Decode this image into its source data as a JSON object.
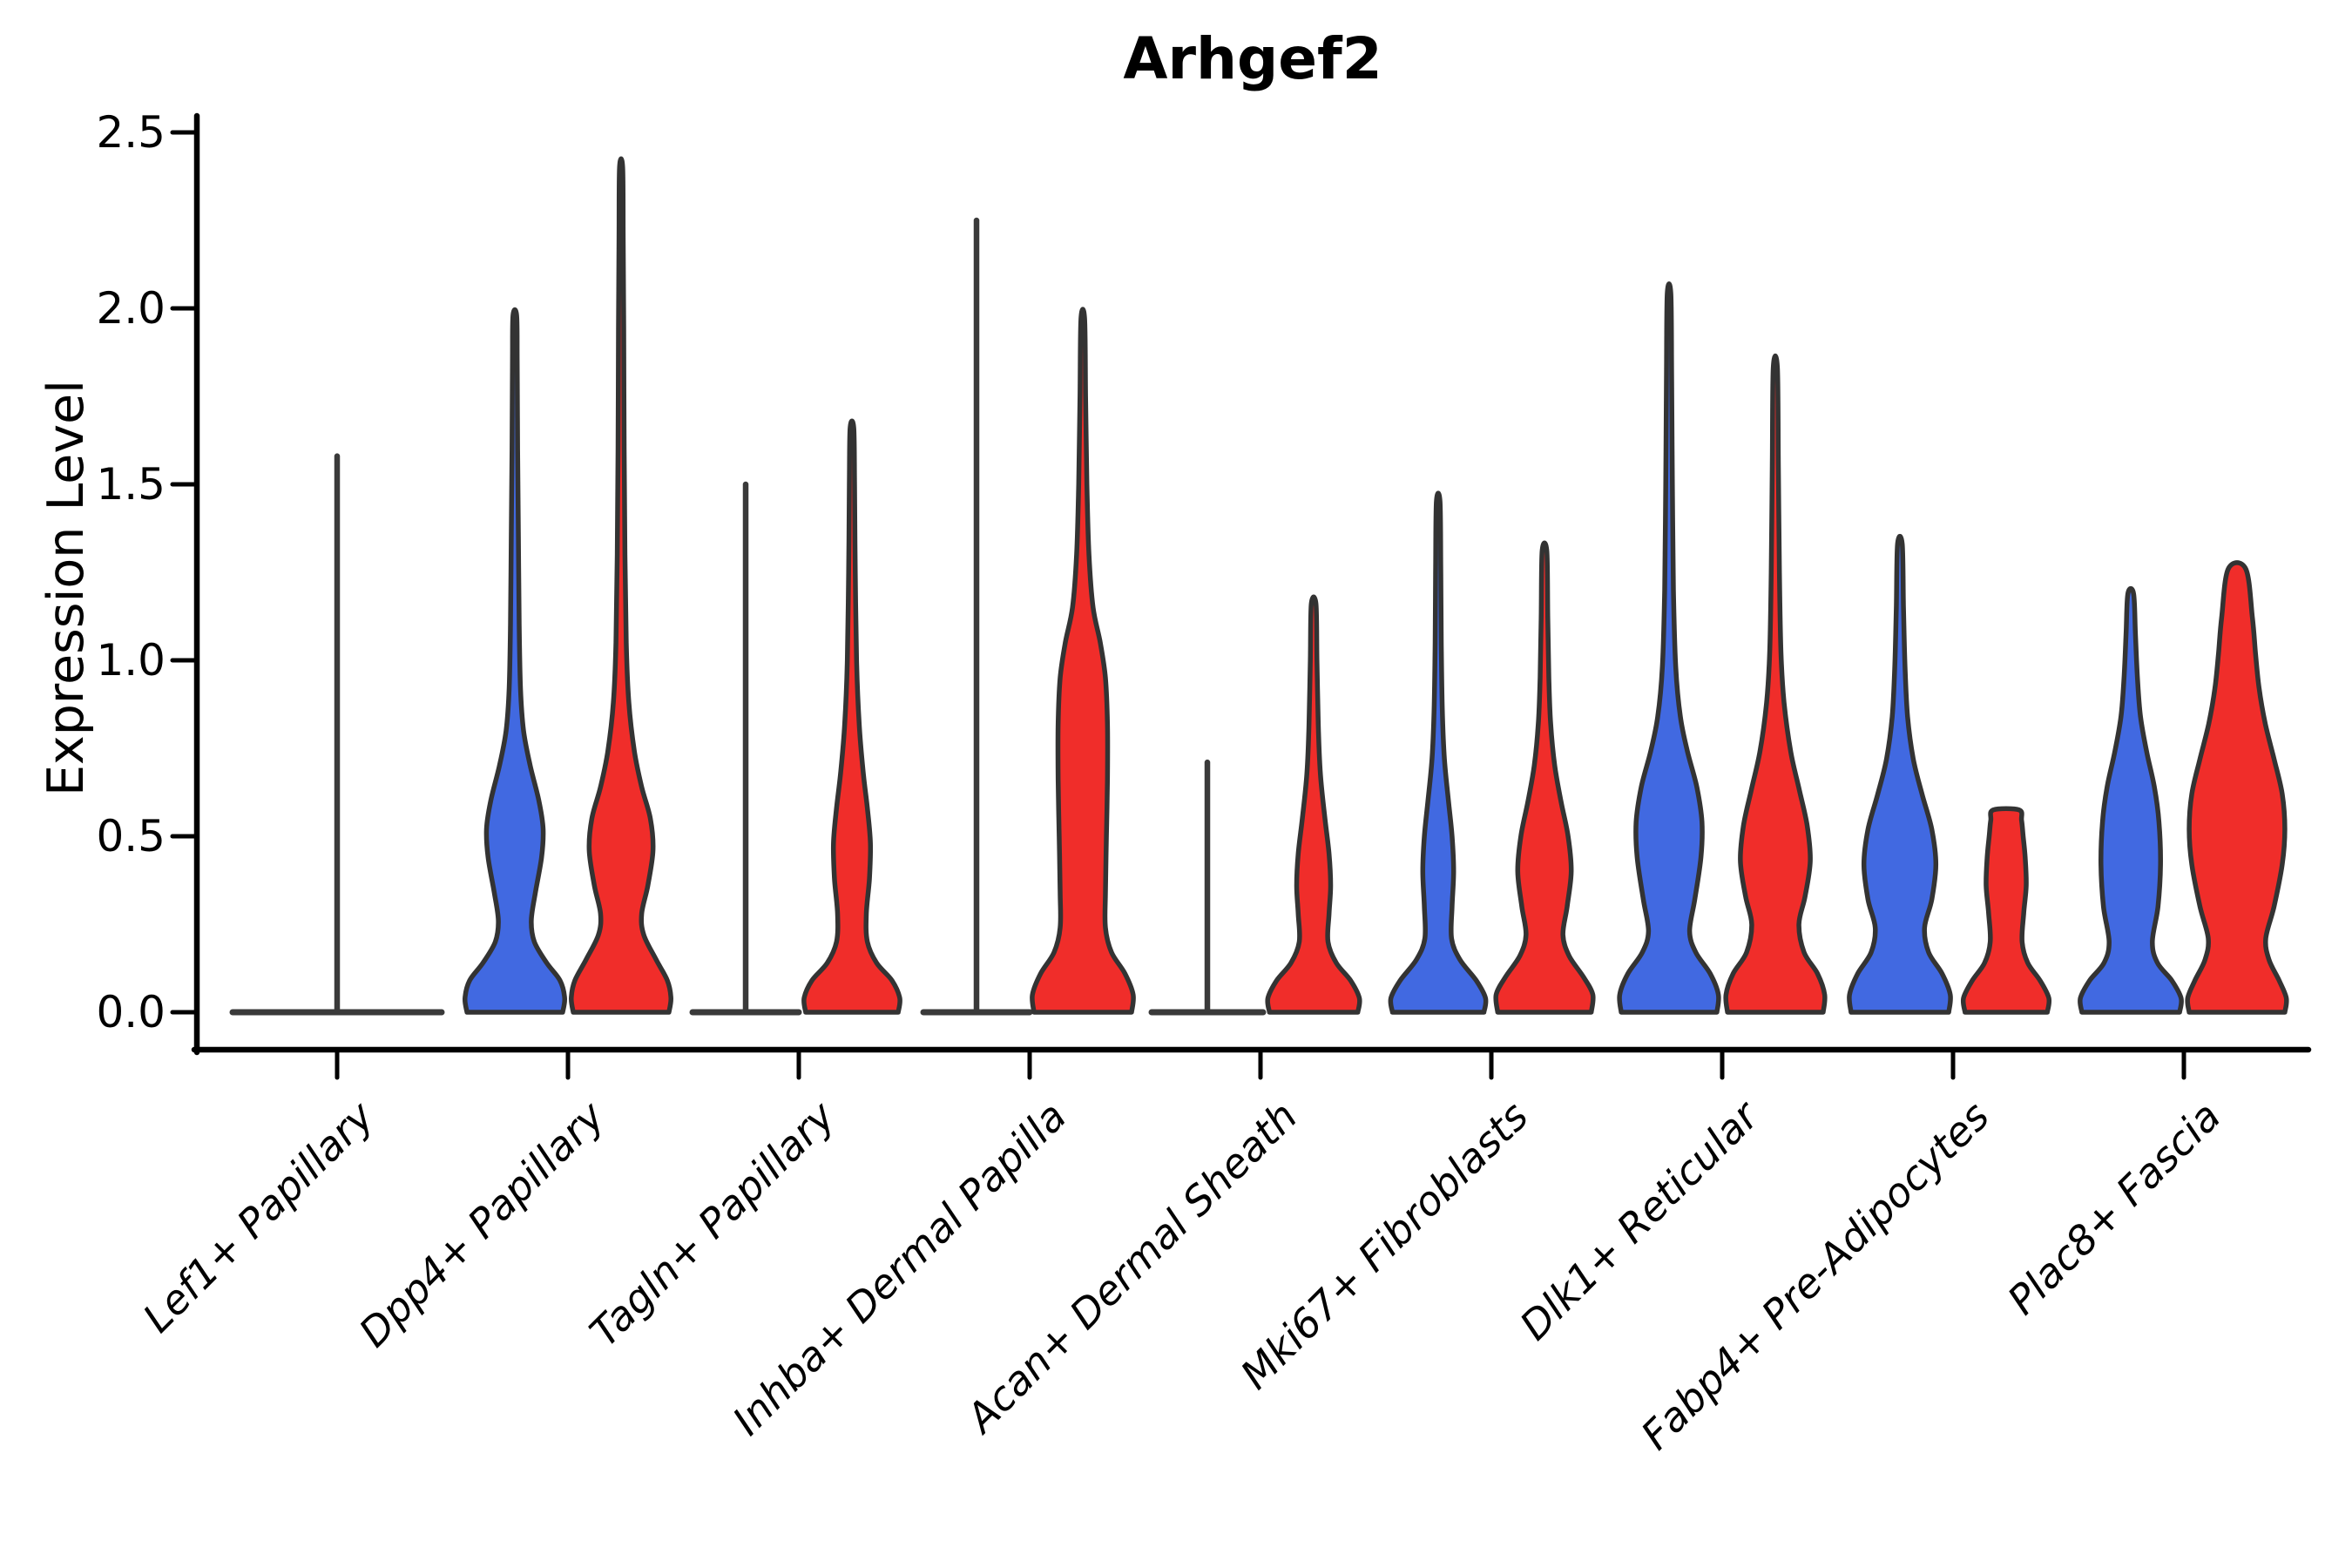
{
  "title": "Arhgef2",
  "ylabel": "Expression Level",
  "colors": {
    "blue_fill": "#4169E1",
    "red_fill": "#F02D2A",
    "violin_outline": "#333333",
    "collapsed_line": "#3a3a3a",
    "axis": "#000000",
    "background": "#ffffff"
  },
  "chart_data": {
    "type": "violin",
    "title": "Arhgef2",
    "xlabel": "",
    "ylabel": "Expression Level",
    "ylim": [
      0,
      2.5
    ],
    "yticks": [
      {
        "value": 0.0,
        "label": "0.0"
      },
      {
        "value": 0.5,
        "label": "0.5"
      },
      {
        "value": 1.0,
        "label": "1.0"
      },
      {
        "value": 1.5,
        "label": "1.5"
      },
      {
        "value": 2.0,
        "label": "2.0"
      },
      {
        "value": 2.5,
        "label": "2.5"
      }
    ],
    "grid": false,
    "legend": "none",
    "categories": [
      "Lef1+ Papillary",
      "Dpp4+ Papillary",
      "Tagln+ Papillary",
      "Inhba+ Dermal Papilla",
      "Acan+ Dermal Sheath",
      "Mki67+ Fibroblasts",
      "Dlk1+ Reticular",
      "Fabp4+ Pre-Adipocytes",
      "Plac8+ Fascia"
    ],
    "series": [
      {
        "name": "blue",
        "color": "#4169E1"
      },
      {
        "name": "red",
        "color": "#F02D2A"
      }
    ],
    "violins": [
      {
        "category": "Lef1+ Papillary",
        "merged": {
          "kind": "flat_spike",
          "flat_width": 240,
          "max": 1.58
        }
      },
      {
        "category": "Dpp4+ Papillary",
        "blue": {
          "kind": "density",
          "max": 1.98,
          "profile": [
            [
              0,
              0.93
            ],
            [
              0.04,
              0.97
            ],
            [
              0.09,
              0.88
            ],
            [
              0.14,
              0.62
            ],
            [
              0.2,
              0.38
            ],
            [
              0.26,
              0.32
            ],
            [
              0.34,
              0.4
            ],
            [
              0.44,
              0.52
            ],
            [
              0.52,
              0.55
            ],
            [
              0.6,
              0.47
            ],
            [
              0.7,
              0.3
            ],
            [
              0.8,
              0.17
            ],
            [
              0.92,
              0.11
            ],
            [
              1.1,
              0.085
            ],
            [
              1.35,
              0.07
            ],
            [
              1.6,
              0.055
            ],
            [
              1.85,
              0.045
            ],
            [
              1.98,
              0.035
            ]
          ]
        },
        "red": {
          "kind": "density",
          "max": 2.4,
          "profile": [
            [
              0,
              0.93
            ],
            [
              0.04,
              0.97
            ],
            [
              0.09,
              0.9
            ],
            [
              0.15,
              0.68
            ],
            [
              0.22,
              0.44
            ],
            [
              0.28,
              0.4
            ],
            [
              0.36,
              0.52
            ],
            [
              0.46,
              0.62
            ],
            [
              0.55,
              0.57
            ],
            [
              0.64,
              0.4
            ],
            [
              0.74,
              0.26
            ],
            [
              0.88,
              0.15
            ],
            [
              1.05,
              0.1
            ],
            [
              1.3,
              0.075
            ],
            [
              1.6,
              0.06
            ],
            [
              1.95,
              0.05
            ],
            [
              2.2,
              0.04
            ],
            [
              2.4,
              0.03
            ]
          ]
        }
      },
      {
        "category": "Tagln+ Papillary",
        "blue": {
          "kind": "flat_spike",
          "flat_width": 122,
          "max": 1.5
        },
        "red": {
          "kind": "density",
          "max": 1.66,
          "profile": [
            [
              0,
              0.9
            ],
            [
              0.04,
              0.93
            ],
            [
              0.09,
              0.78
            ],
            [
              0.14,
              0.48
            ],
            [
              0.2,
              0.3
            ],
            [
              0.28,
              0.28
            ],
            [
              0.38,
              0.34
            ],
            [
              0.48,
              0.36
            ],
            [
              0.58,
              0.3
            ],
            [
              0.68,
              0.22
            ],
            [
              0.82,
              0.14
            ],
            [
              1.0,
              0.09
            ],
            [
              1.25,
              0.065
            ],
            [
              1.5,
              0.05
            ],
            [
              1.66,
              0.035
            ]
          ]
        }
      },
      {
        "category": "Inhba+ Dermal Papilla",
        "blue": {
          "kind": "flat_spike",
          "flat_width": 122,
          "max": 2.25
        },
        "red": {
          "kind": "density",
          "max": 1.97,
          "profile": [
            [
              0,
              0.95
            ],
            [
              0.05,
              0.98
            ],
            [
              0.11,
              0.82
            ],
            [
              0.17,
              0.56
            ],
            [
              0.24,
              0.44
            ],
            [
              0.34,
              0.44
            ],
            [
              0.5,
              0.46
            ],
            [
              0.66,
              0.48
            ],
            [
              0.82,
              0.48
            ],
            [
              0.95,
              0.44
            ],
            [
              1.05,
              0.34
            ],
            [
              1.15,
              0.2
            ],
            [
              1.3,
              0.12
            ],
            [
              1.5,
              0.08
            ],
            [
              1.75,
              0.055
            ],
            [
              1.97,
              0.035
            ]
          ]
        }
      },
      {
        "category": "Acan+ Dermal Sheath",
        "blue": {
          "kind": "flat_spike",
          "flat_width": 128,
          "max": 0.71
        },
        "red": {
          "kind": "density",
          "max": 1.16,
          "profile": [
            [
              0,
              0.86
            ],
            [
              0.04,
              0.89
            ],
            [
              0.09,
              0.72
            ],
            [
              0.14,
              0.44
            ],
            [
              0.2,
              0.28
            ],
            [
              0.28,
              0.3
            ],
            [
              0.36,
              0.33
            ],
            [
              0.45,
              0.3
            ],
            [
              0.55,
              0.22
            ],
            [
              0.68,
              0.13
            ],
            [
              0.82,
              0.09
            ],
            [
              1.0,
              0.065
            ],
            [
              1.16,
              0.045
            ]
          ]
        }
      },
      {
        "category": "Mki67+ Fibroblasts",
        "blue": {
          "kind": "density",
          "max": 1.45,
          "profile": [
            [
              0,
              0.89
            ],
            [
              0.04,
              0.92
            ],
            [
              0.09,
              0.74
            ],
            [
              0.15,
              0.42
            ],
            [
              0.21,
              0.26
            ],
            [
              0.3,
              0.27
            ],
            [
              0.4,
              0.3
            ],
            [
              0.5,
              0.27
            ],
            [
              0.6,
              0.2
            ],
            [
              0.72,
              0.12
            ],
            [
              0.86,
              0.08
            ],
            [
              1.05,
              0.06
            ],
            [
              1.25,
              0.05
            ],
            [
              1.45,
              0.035
            ]
          ]
        },
        "red": {
          "kind": "density",
          "max": 1.31,
          "profile": [
            [
              0,
              0.91
            ],
            [
              0.05,
              0.94
            ],
            [
              0.1,
              0.76
            ],
            [
              0.16,
              0.48
            ],
            [
              0.22,
              0.36
            ],
            [
              0.3,
              0.44
            ],
            [
              0.4,
              0.52
            ],
            [
              0.5,
              0.46
            ],
            [
              0.6,
              0.32
            ],
            [
              0.7,
              0.2
            ],
            [
              0.82,
              0.12
            ],
            [
              0.95,
              0.085
            ],
            [
              1.12,
              0.065
            ],
            [
              1.31,
              0.045
            ]
          ]
        }
      },
      {
        "category": "Dlk1+ Reticular",
        "blue": {
          "kind": "density",
          "max": 2.04,
          "profile": [
            [
              0,
              0.93
            ],
            [
              0.05,
              0.96
            ],
            [
              0.11,
              0.8
            ],
            [
              0.17,
              0.52
            ],
            [
              0.23,
              0.4
            ],
            [
              0.32,
              0.5
            ],
            [
              0.44,
              0.62
            ],
            [
              0.54,
              0.64
            ],
            [
              0.64,
              0.54
            ],
            [
              0.74,
              0.36
            ],
            [
              0.84,
              0.22
            ],
            [
              0.98,
              0.13
            ],
            [
              1.2,
              0.085
            ],
            [
              1.5,
              0.065
            ],
            [
              1.8,
              0.05
            ],
            [
              2.04,
              0.035
            ]
          ]
        },
        "red": {
          "kind": "density",
          "max": 1.83,
          "profile": [
            [
              0,
              0.93
            ],
            [
              0.05,
              0.96
            ],
            [
              0.11,
              0.82
            ],
            [
              0.17,
              0.56
            ],
            [
              0.25,
              0.46
            ],
            [
              0.33,
              0.58
            ],
            [
              0.43,
              0.68
            ],
            [
              0.53,
              0.62
            ],
            [
              0.63,
              0.47
            ],
            [
              0.74,
              0.3
            ],
            [
              0.88,
              0.17
            ],
            [
              1.02,
              0.11
            ],
            [
              1.25,
              0.08
            ],
            [
              1.55,
              0.06
            ],
            [
              1.83,
              0.04
            ]
          ]
        }
      },
      {
        "category": "Fabp4+ Pre-Adipocytes",
        "blue": {
          "kind": "density",
          "max": 1.33,
          "profile": [
            [
              0,
              0.95
            ],
            [
              0.05,
              0.98
            ],
            [
              0.11,
              0.82
            ],
            [
              0.17,
              0.56
            ],
            [
              0.24,
              0.48
            ],
            [
              0.32,
              0.62
            ],
            [
              0.42,
              0.7
            ],
            [
              0.52,
              0.62
            ],
            [
              0.62,
              0.43
            ],
            [
              0.72,
              0.26
            ],
            [
              0.84,
              0.15
            ],
            [
              0.98,
              0.1
            ],
            [
              1.15,
              0.07
            ],
            [
              1.33,
              0.045
            ]
          ]
        },
        "red": {
          "kind": "density",
          "max": 0.575,
          "profile": [
            [
              0,
              0.8
            ],
            [
              0.04,
              0.83
            ],
            [
              0.09,
              0.66
            ],
            [
              0.14,
              0.42
            ],
            [
              0.2,
              0.31
            ],
            [
              0.28,
              0.34
            ],
            [
              0.36,
              0.39
            ],
            [
              0.44,
              0.37
            ],
            [
              0.5,
              0.33
            ],
            [
              0.545,
              0.3
            ],
            [
              0.575,
              0.25
            ]
          ]
        }
      },
      {
        "category": "Plac8+ Fascia",
        "blue": {
          "kind": "density",
          "max": 1.19,
          "profile": [
            [
              0,
              0.95
            ],
            [
              0.04,
              0.98
            ],
            [
              0.09,
              0.8
            ],
            [
              0.14,
              0.52
            ],
            [
              0.2,
              0.42
            ],
            [
              0.3,
              0.53
            ],
            [
              0.42,
              0.58
            ],
            [
              0.54,
              0.55
            ],
            [
              0.64,
              0.46
            ],
            [
              0.74,
              0.31
            ],
            [
              0.84,
              0.19
            ],
            [
              0.95,
              0.13
            ],
            [
              1.08,
              0.09
            ],
            [
              1.19,
              0.055
            ]
          ]
        },
        "red": {
          "kind": "density",
          "max": 1.26,
          "profile": [
            [
              0,
              0.93
            ],
            [
              0.04,
              0.96
            ],
            [
              0.09,
              0.82
            ],
            [
              0.15,
              0.62
            ],
            [
              0.21,
              0.56
            ],
            [
              0.3,
              0.72
            ],
            [
              0.42,
              0.88
            ],
            [
              0.52,
              0.93
            ],
            [
              0.62,
              0.88
            ],
            [
              0.72,
              0.72
            ],
            [
              0.82,
              0.55
            ],
            [
              0.92,
              0.43
            ],
            [
              1.02,
              0.36
            ],
            [
              1.12,
              0.3
            ],
            [
              1.26,
              0.17
            ]
          ]
        }
      }
    ]
  }
}
